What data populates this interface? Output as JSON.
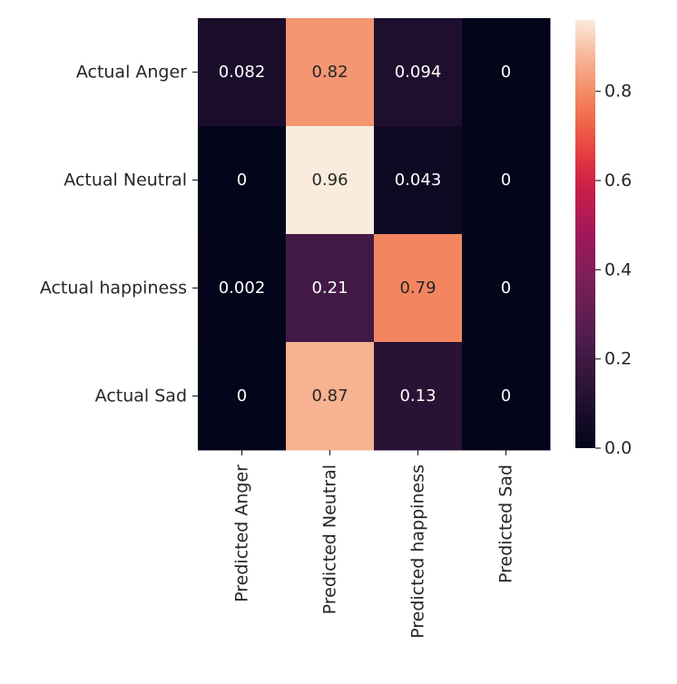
{
  "chart_data": {
    "type": "heatmap",
    "row_labels": [
      "Actual Anger",
      "Actual Neutral",
      "Actual happiness",
      "Actual Sad"
    ],
    "col_labels": [
      "Predicted Anger",
      "Predicted Neutral",
      "Predicted happiness",
      "Predicted Sad"
    ],
    "values": [
      [
        0.082,
        0.82,
        0.094,
        0
      ],
      [
        0,
        0.96,
        0.043,
        0
      ],
      [
        0.002,
        0.21,
        0.79,
        0
      ],
      [
        0,
        0.87,
        0.13,
        0
      ]
    ],
    "cell_labels": [
      [
        "0.082",
        "0.82",
        "0.094",
        "0"
      ],
      [
        "0",
        "0.96",
        "0.043",
        "0"
      ],
      [
        "0.002",
        "0.21",
        "0.79",
        "0"
      ],
      [
        "0",
        "0.87",
        "0.13",
        "0"
      ]
    ],
    "colormap": "rocket",
    "colorbar": {
      "range": [
        0,
        0.96
      ],
      "ticks": [
        0,
        0.2,
        0.4,
        0.6,
        0.8
      ],
      "tick_labels": [
        "0.0",
        "0.2",
        "0.4",
        "0.6",
        "0.8"
      ]
    },
    "title": "",
    "xlabel": "",
    "ylabel": ""
  }
}
